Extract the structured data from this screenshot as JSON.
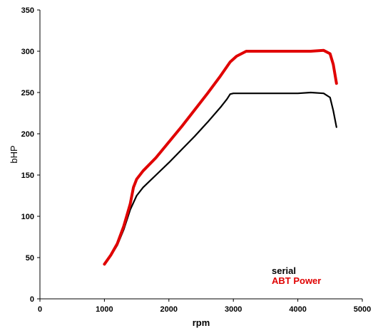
{
  "chart_data": {
    "type": "line",
    "xlabel": "rpm",
    "ylabel": "bHP",
    "xlim": [
      0,
      5000
    ],
    "ylim": [
      0,
      350
    ],
    "x_ticks": [
      0,
      1000,
      2000,
      3000,
      4000,
      5000
    ],
    "y_ticks": [
      0,
      50,
      100,
      150,
      200,
      250,
      300,
      350
    ],
    "grid": false,
    "legend_position": "bottom-right",
    "series": [
      {
        "name": "serial",
        "color": "#000000",
        "points": [
          [
            1000,
            42
          ],
          [
            1100,
            52
          ],
          [
            1200,
            65
          ],
          [
            1300,
            84
          ],
          [
            1400,
            108
          ],
          [
            1500,
            125
          ],
          [
            1600,
            135
          ],
          [
            1800,
            150
          ],
          [
            2000,
            165
          ],
          [
            2200,
            181
          ],
          [
            2400,
            197
          ],
          [
            2600,
            214
          ],
          [
            2800,
            232
          ],
          [
            2900,
            242
          ],
          [
            2950,
            248
          ],
          [
            3000,
            249
          ],
          [
            3200,
            249
          ],
          [
            3500,
            249
          ],
          [
            4000,
            249
          ],
          [
            4200,
            250
          ],
          [
            4400,
            249
          ],
          [
            4500,
            244
          ],
          [
            4550,
            228
          ],
          [
            4600,
            208
          ]
        ]
      },
      {
        "name": "ABT Power",
        "color": "#e00000",
        "points": [
          [
            1000,
            42
          ],
          [
            1100,
            53
          ],
          [
            1200,
            67
          ],
          [
            1300,
            88
          ],
          [
            1400,
            115
          ],
          [
            1450,
            135
          ],
          [
            1500,
            145
          ],
          [
            1600,
            155
          ],
          [
            1800,
            171
          ],
          [
            2000,
            190
          ],
          [
            2200,
            209
          ],
          [
            2400,
            229
          ],
          [
            2600,
            249
          ],
          [
            2800,
            270
          ],
          [
            2950,
            287
          ],
          [
            3050,
            294
          ],
          [
            3200,
            300
          ],
          [
            3500,
            300
          ],
          [
            4000,
            300
          ],
          [
            4200,
            300
          ],
          [
            4400,
            301
          ],
          [
            4500,
            297
          ],
          [
            4550,
            284
          ],
          [
            4600,
            261
          ]
        ]
      }
    ]
  }
}
